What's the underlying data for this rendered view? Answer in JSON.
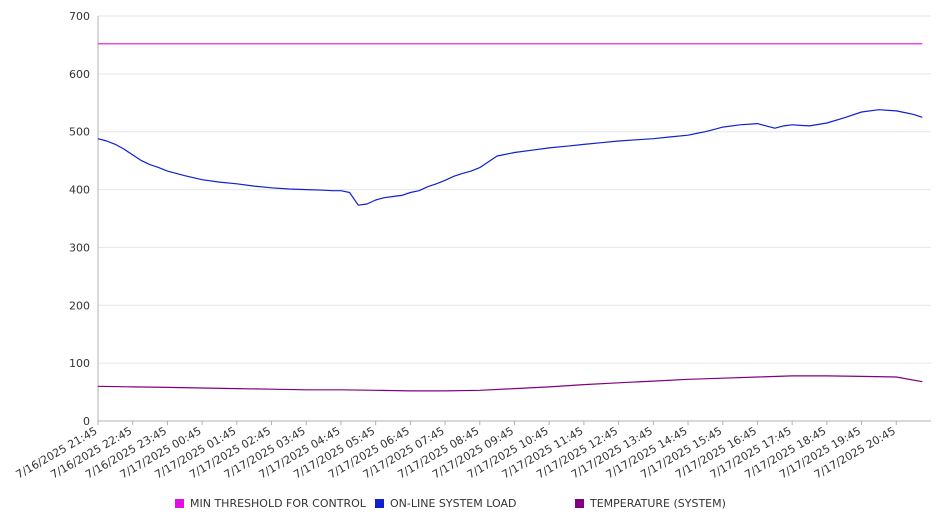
{
  "chart_data": {
    "type": "line",
    "ylim": [
      0,
      700
    ],
    "yticks": [
      0,
      100,
      200,
      300,
      400,
      500,
      600,
      700
    ],
    "x_tick_labels": [
      "7/16/2025 21:45",
      "7/16/2025 22:45",
      "7/16/2025 23:45",
      "7/17/2025 00:45",
      "7/17/2025 01:45",
      "7/17/2025 02:45",
      "7/17/2025 03:45",
      "7/17/2025 04:45",
      "7/17/2025 05:45",
      "7/17/2025 06:45",
      "7/17/2025 07:45",
      "7/17/2025 08:45",
      "7/17/2025 09:45",
      "7/17/2025 10:45",
      "7/17/2025 11:45",
      "7/17/2025 12:45",
      "7/17/2025 13:45",
      "7/17/2025 14:45",
      "7/17/2025 15:45",
      "7/17/2025 16:45",
      "7/17/2025 17:45",
      "7/17/2025 18:45",
      "7/17/2025 19:45",
      "7/17/2025 20:45"
    ],
    "x_start": "7/16/2025 21:45",
    "x_end": "7/17/2025 21:30",
    "grid": true,
    "legend_position": "bottom",
    "series": [
      {
        "name": "MIN THRESHOLD FOR CONTROL",
        "color": "#e010e0",
        "x": [
          "7/16/2025 21:45",
          "7/17/2025 21:30"
        ],
        "y": [
          652,
          652
        ]
      },
      {
        "name": "ON-LINE SYSTEM LOAD",
        "color": "#1020d0",
        "x": [
          "7/16/2025 21:45",
          "7/16/2025 22:00",
          "7/16/2025 22:15",
          "7/16/2025 22:30",
          "7/16/2025 22:45",
          "7/16/2025 23:00",
          "7/16/2025 23:15",
          "7/16/2025 23:30",
          "7/16/2025 23:45",
          "7/17/2025 00:15",
          "7/17/2025 00:45",
          "7/17/2025 01:15",
          "7/17/2025 01:45",
          "7/17/2025 02:15",
          "7/17/2025 02:45",
          "7/17/2025 03:15",
          "7/17/2025 03:45",
          "7/17/2025 04:15",
          "7/17/2025 04:30",
          "7/17/2025 04:45",
          "7/17/2025 05:00",
          "7/17/2025 05:15",
          "7/17/2025 05:30",
          "7/17/2025 05:45",
          "7/17/2025 06:00",
          "7/17/2025 06:15",
          "7/17/2025 06:30",
          "7/17/2025 06:45",
          "7/17/2025 07:00",
          "7/17/2025 07:15",
          "7/17/2025 07:30",
          "7/17/2025 07:45",
          "7/17/2025 08:00",
          "7/17/2025 08:15",
          "7/17/2025 08:30",
          "7/17/2025 08:45",
          "7/17/2025 09:15",
          "7/17/2025 09:45",
          "7/17/2025 10:15",
          "7/17/2025 10:45",
          "7/17/2025 11:15",
          "7/17/2025 11:45",
          "7/17/2025 12:15",
          "7/17/2025 12:45",
          "7/17/2025 13:15",
          "7/17/2025 13:45",
          "7/17/2025 14:15",
          "7/17/2025 14:45",
          "7/17/2025 15:00",
          "7/17/2025 15:15",
          "7/17/2025 15:30",
          "7/17/2025 15:45",
          "7/17/2025 16:15",
          "7/17/2025 16:45",
          "7/17/2025 17:00",
          "7/17/2025 17:15",
          "7/17/2025 17:30",
          "7/17/2025 17:45",
          "7/17/2025 18:00",
          "7/17/2025 18:15",
          "7/17/2025 18:45",
          "7/17/2025 19:15",
          "7/17/2025 19:45",
          "7/17/2025 20:15",
          "7/17/2025 20:45",
          "7/17/2025 21:00",
          "7/17/2025 21:15",
          "7/17/2025 21:30"
        ],
        "y": [
          488,
          484,
          478,
          470,
          460,
          450,
          443,
          438,
          432,
          424,
          417,
          413,
          410,
          406,
          403,
          401,
          400,
          399,
          398,
          398,
          395,
          373,
          375,
          382,
          386,
          388,
          390,
          395,
          398,
          405,
          410,
          416,
          423,
          428,
          432,
          438,
          458,
          464,
          468,
          472,
          475,
          478,
          481,
          484,
          486,
          488,
          491,
          494,
          497,
          500,
          504,
          508,
          512,
          514,
          510,
          506,
          510,
          512,
          511,
          510,
          515,
          524,
          534,
          538,
          536,
          533,
          530,
          525
        ]
      },
      {
        "name": "TEMPERATURE (SYSTEM)",
        "color": "#800080",
        "x": [
          "7/16/2025 21:45",
          "7/16/2025 22:45",
          "7/16/2025 23:45",
          "7/17/2025 00:45",
          "7/17/2025 01:45",
          "7/17/2025 02:45",
          "7/17/2025 03:45",
          "7/17/2025 04:45",
          "7/17/2025 05:45",
          "7/17/2025 06:45",
          "7/17/2025 07:45",
          "7/17/2025 08:45",
          "7/17/2025 09:45",
          "7/17/2025 10:45",
          "7/17/2025 11:45",
          "7/17/2025 12:45",
          "7/17/2025 13:45",
          "7/17/2025 14:45",
          "7/17/2025 15:45",
          "7/17/2025 16:45",
          "7/17/2025 17:45",
          "7/17/2025 18:45",
          "7/17/2025 19:45",
          "7/17/2025 20:45",
          "7/17/2025 21:30"
        ],
        "y": [
          60,
          59,
          58,
          57,
          56,
          55,
          54,
          54,
          53,
          52,
          52,
          53,
          56,
          59,
          63,
          66,
          69,
          72,
          74,
          76,
          78,
          78,
          77,
          76,
          68
        ]
      }
    ]
  }
}
